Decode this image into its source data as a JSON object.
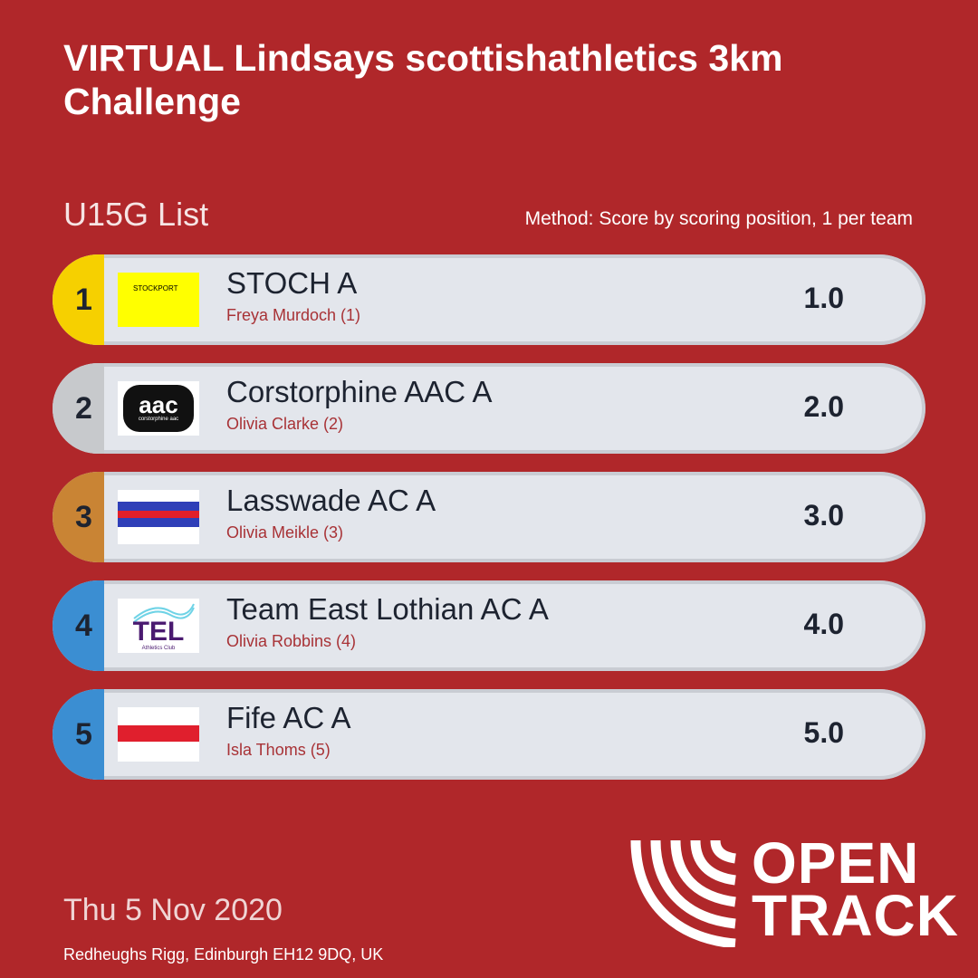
{
  "title": "VIRTUAL Lindsays scottishathletics 3km Challenge",
  "list_label": "U15G List",
  "method": "Method: Score by scoring position, 1 per team",
  "rows": [
    {
      "rank": "1",
      "team": "STOCH A",
      "athlete": "Freya Murdoch (1)",
      "score": "1.0",
      "rank_color": "#f6d000",
      "logo_text": "STOCKPORT"
    },
    {
      "rank": "2",
      "team": "Corstorphine AAC A",
      "athlete": "Olivia Clarke (2)",
      "score": "2.0",
      "rank_color": "#c7c9cc",
      "logo_text": "aac",
      "logo_subtext": "corstorphine aac"
    },
    {
      "rank": "3",
      "team": "Lasswade AC A",
      "athlete": "Olivia Meikle (3)",
      "score": "3.0",
      "rank_color": "#c98434"
    },
    {
      "rank": "4",
      "team": "Team East Lothian AC A",
      "athlete": "Olivia Robbins (4)",
      "score": "4.0",
      "rank_color": "#3b8ed2",
      "logo_text": "TEL",
      "logo_subtext": "Athletics Club"
    },
    {
      "rank": "5",
      "team": "Fife AC A",
      "athlete": "Isla Thoms (5)",
      "score": "5.0",
      "rank_color": "#3b8ed2"
    }
  ],
  "date": "Thu 5 Nov 2020",
  "venue": "Redheughs Rigg, Edinburgh EH12 9DQ, UK",
  "brand": {
    "line1": "OPEN",
    "line2": "TRACK",
    "icon": "opentrack-arcs-icon"
  },
  "colors": {
    "background": "#b0272a",
    "row_bg": "#e3e6ec",
    "row_border": "#c9ccd3",
    "athlete_text": "#a83236"
  }
}
